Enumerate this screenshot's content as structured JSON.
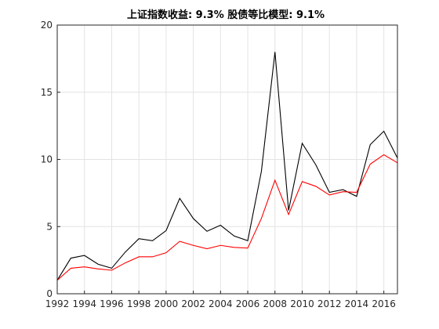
{
  "chart_data": {
    "type": "line",
    "title": "上证指数收益: 9.3%     股债等比模型: 9.1%",
    "xlabel": "",
    "ylabel": "",
    "x": [
      1992,
      1993,
      1994,
      1995,
      1996,
      1997,
      1998,
      1999,
      2000,
      2001,
      2002,
      2003,
      2004,
      2005,
      2006,
      2007,
      2008,
      2009,
      2010,
      2011,
      2012,
      2013,
      2014,
      2015,
      2016,
      2017
    ],
    "xlim": [
      1992,
      2017
    ],
    "ylim": [
      0,
      20
    ],
    "xticks": [
      "1992",
      "1994",
      "1996",
      "1998",
      "2000",
      "2002",
      "2004",
      "2006",
      "2008",
      "2010",
      "2012",
      "2014",
      "2016"
    ],
    "yticks": [
      "0",
      "5",
      "10",
      "15",
      "20"
    ],
    "grid": true,
    "legend": "none",
    "series": [
      {
        "color": "#000000",
        "values": [
          1.0,
          2.65,
          2.85,
          2.2,
          1.9,
          3.1,
          4.1,
          3.95,
          4.7,
          7.1,
          5.6,
          4.65,
          5.1,
          4.3,
          3.95,
          9.1,
          18.0,
          6.2,
          11.2,
          9.6,
          7.55,
          7.75,
          7.25,
          11.1,
          12.1,
          10.1
        ]
      },
      {
        "color": "#ff0000",
        "values": [
          1.0,
          1.9,
          2.0,
          1.85,
          1.75,
          2.3,
          2.75,
          2.75,
          3.05,
          3.9,
          3.6,
          3.35,
          3.6,
          3.45,
          3.4,
          5.6,
          8.45,
          5.9,
          8.35,
          8.0,
          7.35,
          7.6,
          7.55,
          9.65,
          10.35,
          9.75
        ]
      }
    ]
  }
}
